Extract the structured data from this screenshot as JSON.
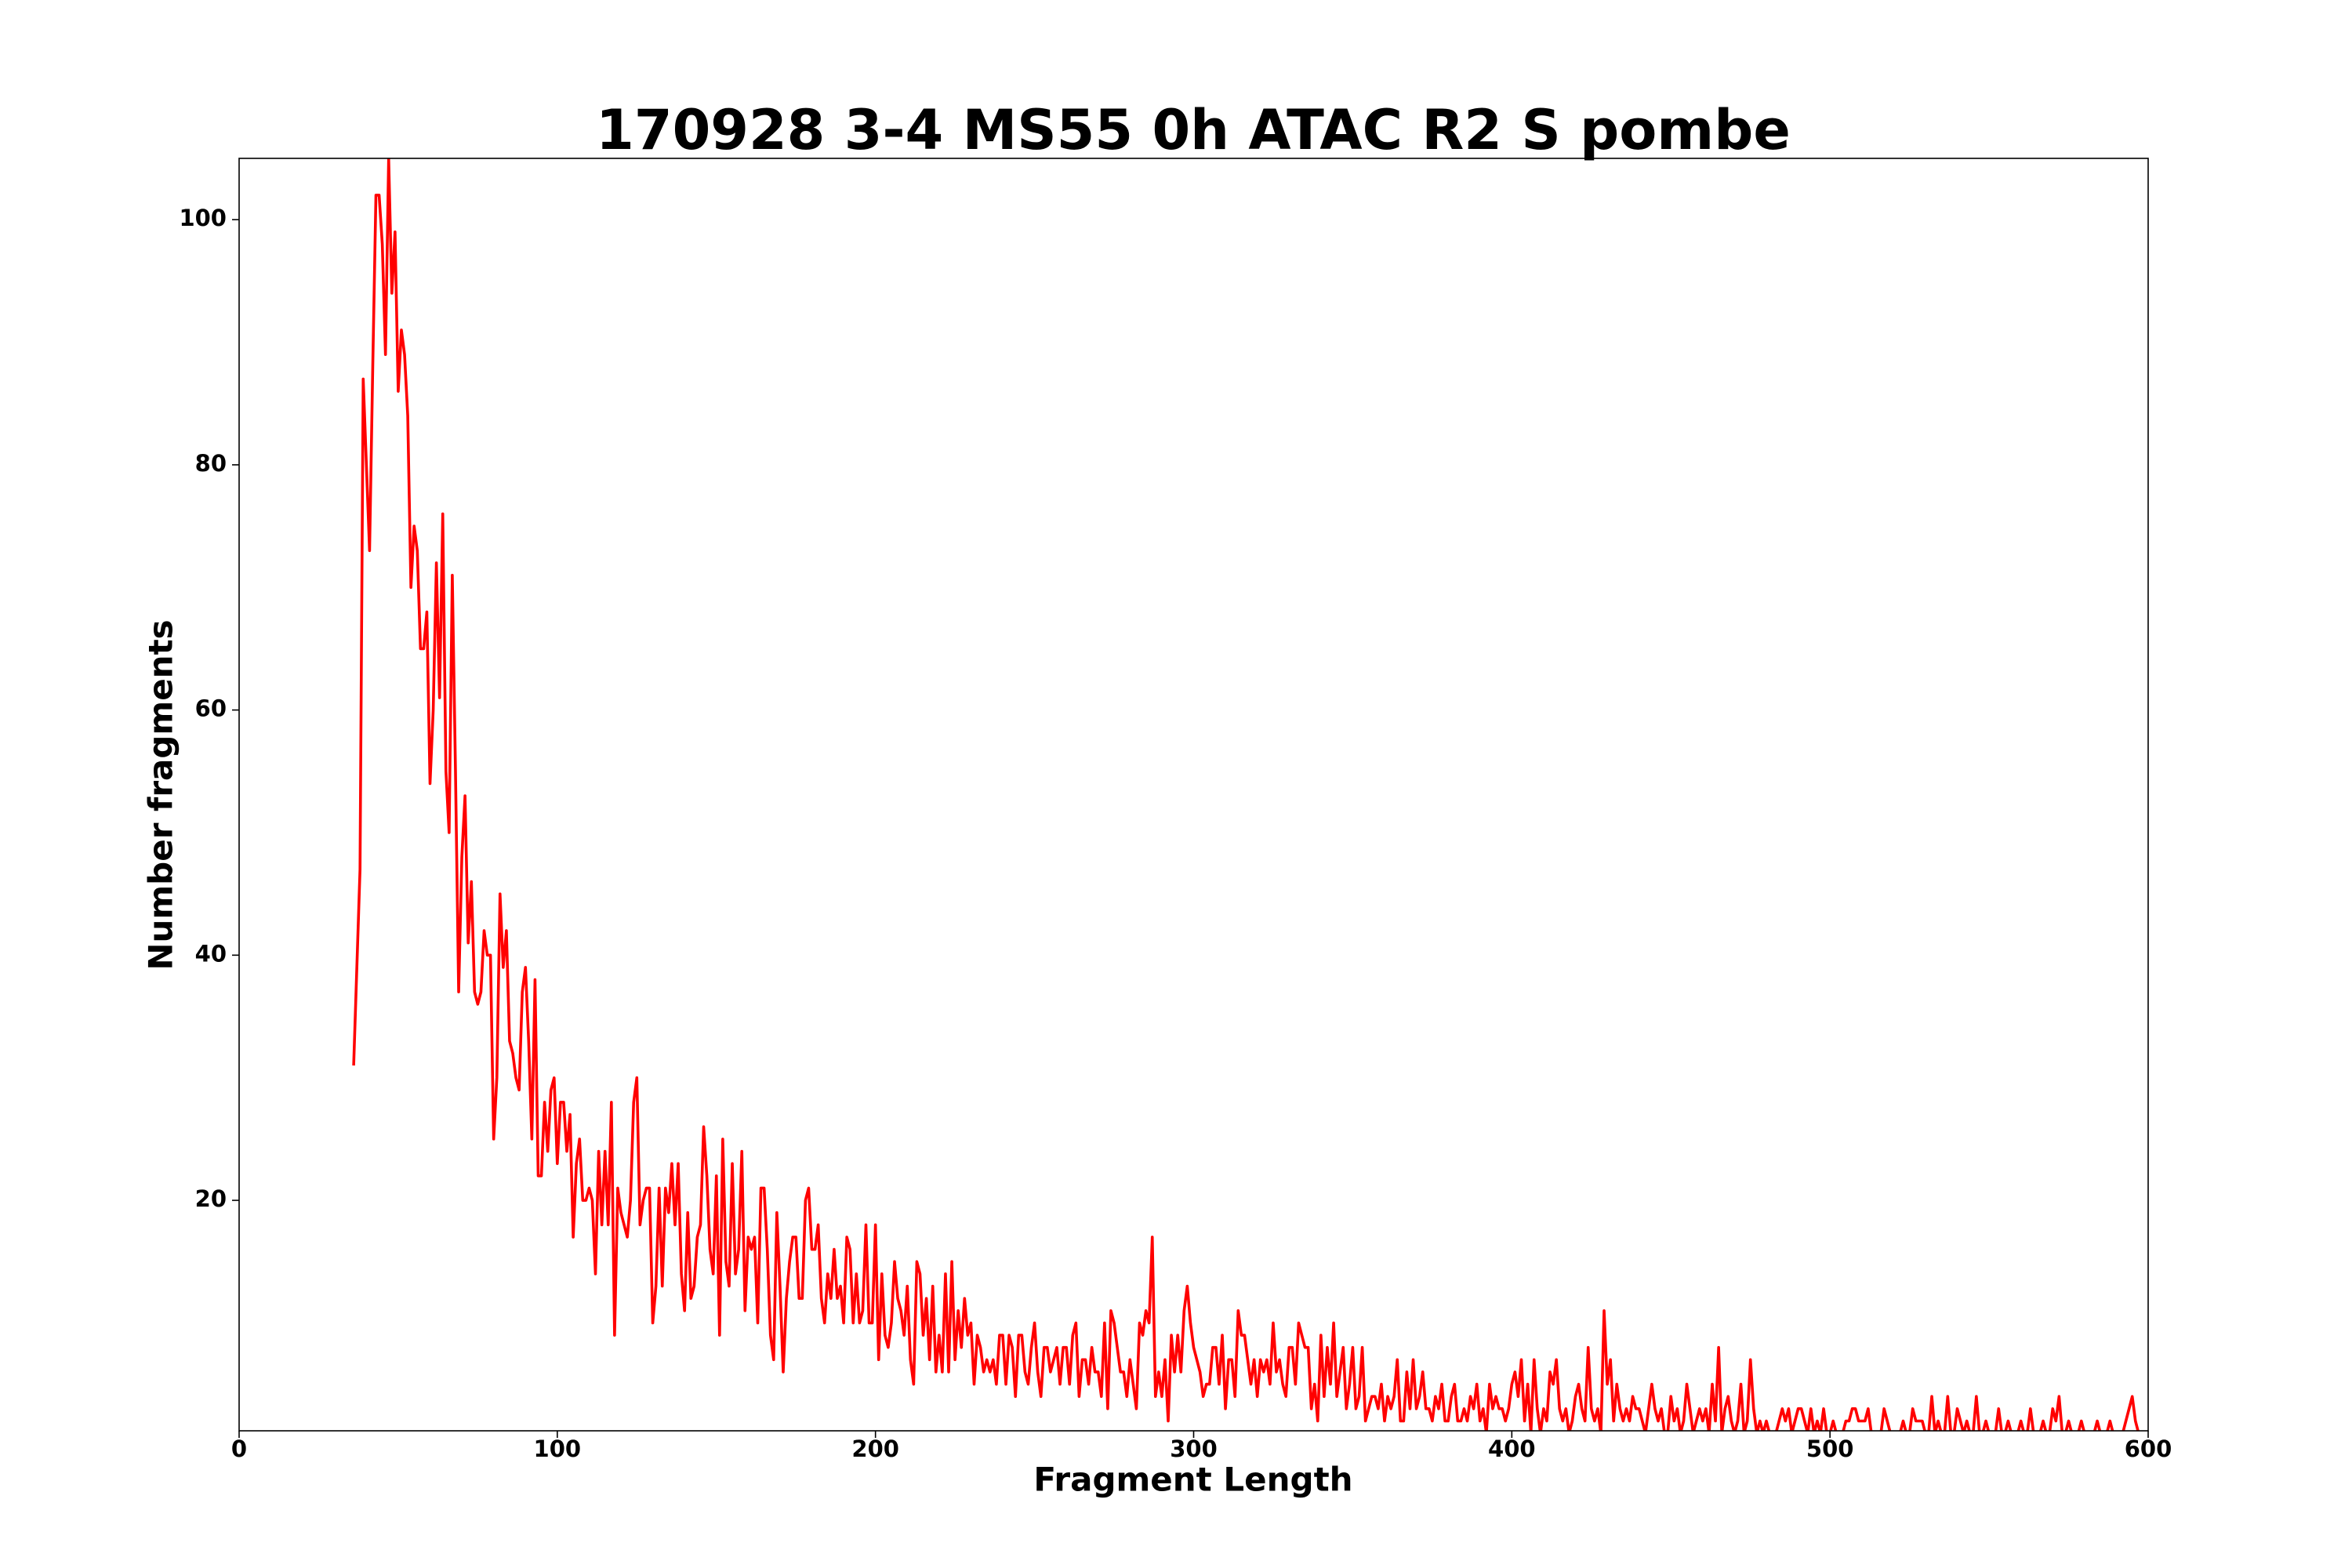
{
  "chart_data": {
    "type": "line",
    "title": "170928 3-4 MS55 0h ATAC R2 S pombe",
    "x_label": "Fragment Length",
    "y_label": "Number fragments",
    "xlim": [
      0,
      600
    ],
    "ylim": [
      1.2,
      105
    ],
    "xticks": [
      0,
      100,
      200,
      300,
      400,
      500,
      600
    ],
    "yticks": [
      20,
      40,
      60,
      80,
      100
    ],
    "grid": false,
    "series": [
      {
        "color": "#ff0000",
        "x": [
          36,
          37,
          38,
          39,
          40,
          41,
          42,
          43,
          44,
          45,
          46,
          47,
          48,
          49,
          50,
          51,
          52,
          53,
          54,
          55,
          56,
          57,
          58,
          59,
          60,
          61,
          62,
          63,
          64,
          65,
          66,
          67,
          68,
          69,
          70,
          71,
          72,
          73,
          74,
          75,
          76,
          77,
          78,
          79,
          80,
          81,
          82,
          83,
          84,
          85,
          86,
          87,
          88,
          89,
          90,
          91,
          92,
          93,
          94,
          95,
          96,
          97,
          98,
          99,
          100,
          101,
          102,
          103,
          104,
          105,
          106,
          107,
          108,
          109,
          110,
          111,
          112,
          113,
          114,
          115,
          116,
          117,
          118,
          119,
          120,
          121,
          122,
          123,
          124,
          125,
          126,
          127,
          128,
          129,
          130,
          131,
          132,
          133,
          134,
          135,
          136,
          137,
          138,
          139,
          140,
          141,
          142,
          143,
          144,
          145,
          146,
          147,
          148,
          149,
          150,
          151,
          152,
          153,
          154,
          155,
          156,
          157,
          158,
          159,
          160,
          161,
          162,
          163,
          164,
          165,
          166,
          167,
          168,
          169,
          170,
          171,
          172,
          173,
          174,
          175,
          176,
          177,
          178,
          179,
          180,
          181,
          182,
          183,
          184,
          185,
          186,
          187,
          188,
          189,
          190,
          191,
          192,
          193,
          194,
          195,
          196,
          197,
          198,
          199,
          200,
          201,
          202,
          203,
          204,
          205,
          206,
          207,
          208,
          209,
          210,
          211,
          212,
          213,
          214,
          215,
          216,
          217,
          218,
          219,
          220,
          221,
          222,
          223,
          224,
          225,
          226,
          227,
          228,
          229,
          230,
          231,
          232,
          233,
          234,
          235,
          236,
          237,
          238,
          239,
          240,
          241,
          242,
          243,
          244,
          245,
          246,
          247,
          248,
          249,
          250,
          251,
          252,
          253,
          254,
          255,
          256,
          257,
          258,
          259,
          260,
          261,
          262,
          263,
          264,
          265,
          266,
          267,
          268,
          269,
          270,
          271,
          272,
          273,
          274,
          275,
          276,
          277,
          278,
          279,
          280,
          281,
          282,
          283,
          284,
          285,
          286,
          287,
          288,
          289,
          290,
          291,
          292,
          293,
          294,
          295,
          296,
          297,
          298,
          299,
          300,
          301,
          302,
          303,
          304,
          305,
          306,
          307,
          308,
          309,
          310,
          311,
          312,
          313,
          314,
          315,
          316,
          317,
          318,
          319,
          320,
          321,
          322,
          323,
          324,
          325,
          326,
          327,
          328,
          329,
          330,
          331,
          332,
          333,
          334,
          335,
          336,
          337,
          338,
          339,
          340,
          341,
          342,
          343,
          344,
          345,
          346,
          347,
          348,
          349,
          350,
          351,
          352,
          353,
          354,
          355,
          356,
          357,
          358,
          359,
          360,
          361,
          362,
          363,
          364,
          365,
          366,
          367,
          368,
          369,
          370,
          371,
          372,
          373,
          374,
          375,
          376,
          377,
          378,
          379,
          380,
          381,
          382,
          383,
          384,
          385,
          386,
          387,
          388,
          389,
          390,
          391,
          392,
          393,
          394,
          395,
          396,
          397,
          398,
          399,
          400,
          401,
          402,
          403,
          404,
          405,
          406,
          407,
          408,
          409,
          410,
          411,
          412,
          413,
          414,
          415,
          416,
          417,
          418,
          419,
          420,
          421,
          422,
          423,
          424,
          425,
          426,
          427,
          428,
          429,
          430,
          431,
          432,
          433,
          434,
          435,
          436,
          437,
          438,
          439,
          440,
          441,
          442,
          443,
          444,
          445,
          446,
          447,
          448,
          449,
          450,
          451,
          452,
          453,
          454,
          455,
          456,
          457,
          458,
          459,
          460,
          461,
          462,
          463,
          464,
          465,
          466,
          467,
          468,
          469,
          470,
          471,
          472,
          473,
          474,
          475,
          476,
          477,
          478,
          479,
          480,
          481,
          482,
          483,
          484,
          485,
          486,
          487,
          488,
          489,
          490,
          491,
          492,
          493,
          494,
          495,
          496,
          497,
          498,
          499,
          500,
          501,
          502,
          503,
          504,
          505,
          506,
          507,
          508,
          509,
          510,
          511,
          512,
          513,
          514,
          515,
          516,
          517,
          518,
          519,
          520,
          521,
          522,
          523,
          524,
          525,
          526,
          527,
          528,
          529,
          530,
          531,
          532,
          533,
          534,
          535,
          536,
          537,
          538,
          539,
          540,
          541,
          542,
          543,
          544,
          545,
          546,
          547,
          548,
          549,
          550,
          551,
          552,
          553,
          554,
          555,
          556,
          557,
          558,
          559,
          560,
          561,
          562,
          563,
          564,
          565,
          566,
          567,
          568,
          569,
          570,
          571,
          572,
          573,
          574,
          575,
          576,
          577,
          578,
          579,
          580,
          581,
          582,
          583,
          584,
          585,
          586,
          587,
          588,
          589,
          590,
          591,
          592,
          593,
          594,
          595,
          596,
          597,
          598
        ],
        "values": [
          31,
          39,
          47,
          87,
          80,
          73,
          88,
          102,
          102,
          98,
          89,
          105,
          94,
          99,
          86,
          91,
          89,
          84,
          70,
          75,
          73,
          65,
          65,
          68,
          54,
          60,
          72,
          61,
          76,
          55,
          50,
          71,
          55,
          37,
          48,
          53,
          41,
          46,
          37,
          36,
          37,
          42,
          40,
          40,
          25,
          30,
          45,
          39,
          42,
          33,
          32,
          30,
          29,
          37,
          39,
          33,
          25,
          38,
          22,
          22,
          28,
          24,
          29,
          30,
          23,
          28,
          28,
          24,
          27,
          17,
          23,
          25,
          20,
          20,
          21,
          20,
          14,
          24,
          18,
          24,
          18,
          28,
          9,
          21,
          19,
          18,
          17,
          20,
          28,
          30,
          18,
          20,
          21,
          21,
          10,
          13,
          21,
          13,
          21,
          19,
          23,
          18,
          23,
          14,
          11,
          19,
          12,
          13,
          17,
          18,
          26,
          22,
          16,
          14,
          22,
          9,
          25,
          15,
          13,
          23,
          14,
          16,
          24,
          11,
          17,
          16,
          17,
          10,
          21,
          21,
          16,
          9,
          7,
          19,
          13,
          6,
          12,
          15,
          17,
          17,
          12,
          12,
          20,
          21,
          16,
          16,
          18,
          12,
          10,
          14,
          12,
          16,
          12,
          13,
          10,
          17,
          16,
          10,
          14,
          10,
          11,
          18,
          10,
          10,
          18,
          7,
          14,
          9,
          8,
          10,
          15,
          12,
          11,
          9,
          13,
          7,
          5,
          15,
          14,
          9,
          12,
          7,
          13,
          6,
          9,
          6,
          14,
          6,
          15,
          7,
          11,
          8,
          12,
          9,
          10,
          5,
          9,
          8,
          6,
          7,
          6,
          7,
          5,
          9,
          9,
          5,
          9,
          8,
          4,
          9,
          9,
          6,
          5,
          8,
          10,
          6,
          4,
          8,
          8,
          6,
          7,
          8,
          5,
          8,
          8,
          5,
          9,
          10,
          4,
          7,
          7,
          5,
          8,
          6,
          6,
          4,
          10,
          3,
          11,
          10,
          8,
          6,
          6,
          4,
          7,
          5,
          3,
          10,
          9,
          11,
          10,
          17,
          4,
          6,
          4,
          7,
          2,
          9,
          6,
          9,
          6,
          11,
          13,
          10,
          8,
          7,
          6,
          4,
          5,
          5,
          8,
          8,
          5,
          9,
          3,
          7,
          7,
          4,
          11,
          9,
          9,
          7,
          5,
          7,
          4,
          7,
          6,
          7,
          5,
          10,
          6,
          7,
          5,
          4,
          8,
          8,
          5,
          10,
          9,
          8,
          8,
          3,
          5,
          2,
          9,
          4,
          8,
          5,
          10,
          4,
          6,
          8,
          3,
          5,
          8,
          3,
          4,
          8,
          2,
          3,
          4,
          4,
          3,
          5,
          2,
          4,
          3,
          4,
          7,
          2,
          2,
          6,
          3,
          7,
          3,
          4,
          6,
          3,
          3,
          2,
          4,
          3,
          5,
          2,
          2,
          4,
          5,
          2,
          2,
          3,
          2,
          4,
          3,
          5,
          2,
          3,
          1,
          5,
          3,
          4,
          3,
          3,
          2,
          3,
          5,
          6,
          4,
          7,
          2,
          5,
          1,
          7,
          3,
          1,
          3,
          2,
          6,
          5,
          7,
          3,
          2,
          3,
          1,
          2,
          4,
          5,
          3,
          2,
          8,
          3,
          2,
          3,
          1,
          11,
          5,
          7,
          2,
          5,
          3,
          2,
          3,
          2,
          4,
          3,
          3,
          2,
          1,
          3,
          5,
          3,
          2,
          3,
          1,
          1,
          4,
          2,
          3,
          1,
          2,
          5,
          3,
          1,
          2,
          3,
          2,
          3,
          1,
          5,
          2,
          8,
          1,
          3,
          4,
          2,
          1,
          2,
          5,
          1,
          2,
          7,
          3,
          1,
          2,
          1,
          2,
          1,
          1,
          1,
          2,
          3,
          2,
          3,
          1,
          2,
          3,
          3,
          2,
          1,
          3,
          1,
          2,
          1,
          3,
          1,
          1,
          2,
          1,
          1,
          1,
          2,
          2,
          3,
          3,
          2,
          2,
          2,
          3,
          1,
          1,
          1,
          1,
          3,
          2,
          1,
          1,
          1,
          1,
          2,
          1,
          1,
          3,
          2,
          2,
          2,
          1,
          1,
          4,
          1,
          2,
          1,
          1,
          4,
          1,
          1,
          3,
          2,
          1,
          2,
          1,
          1,
          4,
          1,
          1,
          2,
          1,
          1,
          1,
          3,
          1,
          1,
          2,
          1,
          1,
          1,
          2,
          1,
          1,
          3,
          1,
          1,
          1,
          2,
          1,
          1,
          3,
          2,
          4,
          1,
          1,
          2,
          1,
          1,
          1,
          2,
          1,
          1,
          1,
          1,
          2,
          1,
          1,
          1,
          2,
          1,
          1,
          1,
          1,
          2,
          3,
          4,
          2,
          1,
          1
        ]
      }
    ]
  }
}
